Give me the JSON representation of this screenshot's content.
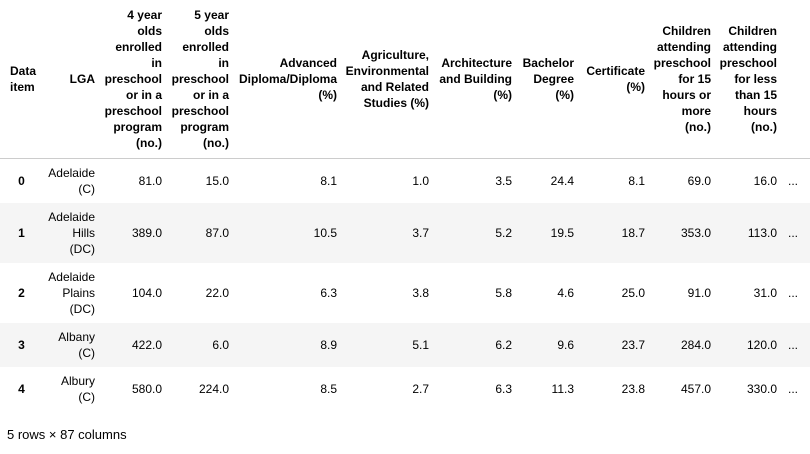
{
  "table": {
    "index_name": "Data item",
    "columns": [
      "LGA",
      "4 year olds enrolled in preschool or in a preschool program (no.)",
      "5 year olds enrolled in preschool or in a preschool program (no.)",
      "Advanced Diploma/Diploma (%)",
      "Agriculture, Environmental and Related Studies (%)",
      "Architecture and Building (%)",
      "Bachelor Degree (%)",
      "Certificate (%)",
      "Children attending preschool for 15 hours or more (no.)",
      "Children attending preschool for less than 15 hours (no.)"
    ],
    "rows": [
      [
        "0",
        "Adelaide (C)",
        "81.0",
        "15.0",
        "8.1",
        "1.0",
        "3.5",
        "24.4",
        "8.1",
        "69.0",
        "16.0",
        "..."
      ],
      [
        "1",
        "Adelaide Hills (DC)",
        "389.0",
        "87.0",
        "10.5",
        "3.7",
        "5.2",
        "19.5",
        "18.7",
        "353.0",
        "113.0",
        "..."
      ],
      [
        "2",
        "Adelaide Plains (DC)",
        "104.0",
        "22.0",
        "6.3",
        "3.8",
        "5.8",
        "4.6",
        "25.0",
        "91.0",
        "31.0",
        "..."
      ],
      [
        "3",
        "Albany (C)",
        "422.0",
        "6.0",
        "8.9",
        "5.1",
        "6.2",
        "9.6",
        "23.7",
        "284.0",
        "120.0",
        "..."
      ],
      [
        "4",
        "Albury (C)",
        "580.0",
        "224.0",
        "8.5",
        "2.7",
        "6.3",
        "11.3",
        "23.8",
        "457.0",
        "330.0",
        "..."
      ]
    ],
    "footer": "5 rows × 87 columns"
  }
}
